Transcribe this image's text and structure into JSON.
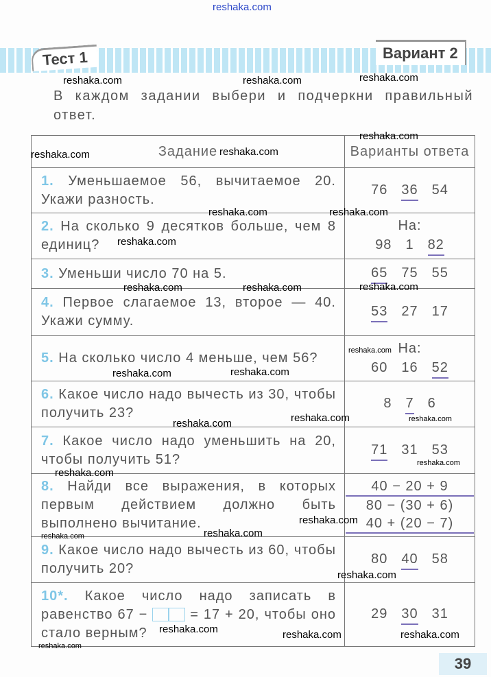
{
  "site": "reshaka.com",
  "watermark": "reshaka.com",
  "header": {
    "test": "Тест 1",
    "variant": "Вариант 2"
  },
  "instruction": "В каждом задании выбери и подчеркни правильный ответ.",
  "table": {
    "col_task": "Задание",
    "col_answers": "Варианты ответа",
    "rows": [
      {
        "n": "1.",
        "text": "Уменьшаемое 56, вычитаемое 20. Укажи разность.",
        "prefix": "",
        "answers": [
          {
            "v": "76",
            "u": false
          },
          {
            "v": "36",
            "u": true
          },
          {
            "v": "54",
            "u": false
          }
        ]
      },
      {
        "n": "2.",
        "text": "На сколько 9 десятков больше, чем 8 единиц?",
        "prefix": "На:",
        "answers": [
          {
            "v": "98",
            "u": false
          },
          {
            "v": "1",
            "u": false
          },
          {
            "v": "82",
            "u": true
          }
        ]
      },
      {
        "n": "3.",
        "text": "Уменьши число 70 на 5.",
        "prefix": "",
        "answers": [
          {
            "v": "65",
            "u": true
          },
          {
            "v": "75",
            "u": false
          },
          {
            "v": "55",
            "u": false
          }
        ]
      },
      {
        "n": "4.",
        "text": "Первое слагаемое 13, второе — 40. Укажи сумму.",
        "prefix": "",
        "answers": [
          {
            "v": "53",
            "u": true
          },
          {
            "v": "27",
            "u": false
          },
          {
            "v": "17",
            "u": false
          }
        ]
      },
      {
        "n": "5.",
        "text": "На сколько число 4 меньше, чем 56?",
        "prefix": "На:",
        "answers": [
          {
            "v": "60",
            "u": false
          },
          {
            "v": "16",
            "u": false
          },
          {
            "v": "52",
            "u": true
          }
        ]
      },
      {
        "n": "6.",
        "text": "Какое число надо вычесть из 30, чтобы получить 23?",
        "prefix": "",
        "answers": [
          {
            "v": "8",
            "u": false
          },
          {
            "v": "7",
            "u": true
          },
          {
            "v": "6",
            "u": false
          }
        ]
      },
      {
        "n": "7.",
        "text": "Какое число надо уменьшить на 20, чтобы получить 51?",
        "prefix": "",
        "answers": [
          {
            "v": "71",
            "u": true
          },
          {
            "v": "31",
            "u": false
          },
          {
            "v": "53",
            "u": false
          }
        ]
      },
      {
        "n": "8.",
        "text": "Найди все выражения, в которых первым действием должно быть выполнено вычитание.",
        "prefix": "",
        "exprs": [
          {
            "v": "40 − 20 + 9",
            "u": true
          },
          {
            "v": "80 − (30 + 6)",
            "u": false
          },
          {
            "v": "40 + (20 − 7)",
            "u": true
          }
        ]
      },
      {
        "n": "9.",
        "text": "Какое число надо вычесть из 60, чтобы получить 20?",
        "prefix": "",
        "answers": [
          {
            "v": "80",
            "u": false
          },
          {
            "v": "40",
            "u": true
          },
          {
            "v": "58",
            "u": false
          }
        ]
      },
      {
        "n": "10*.",
        "text_a": "Какое число надо записать в равенство 67 −",
        "text_b": "= 17 + 20, чтобы оно стало верным?",
        "prefix": "",
        "answers": [
          {
            "v": "29",
            "u": false
          },
          {
            "v": "30",
            "u": true
          },
          {
            "v": "31",
            "u": false
          }
        ]
      }
    ]
  },
  "page_number": "39"
}
